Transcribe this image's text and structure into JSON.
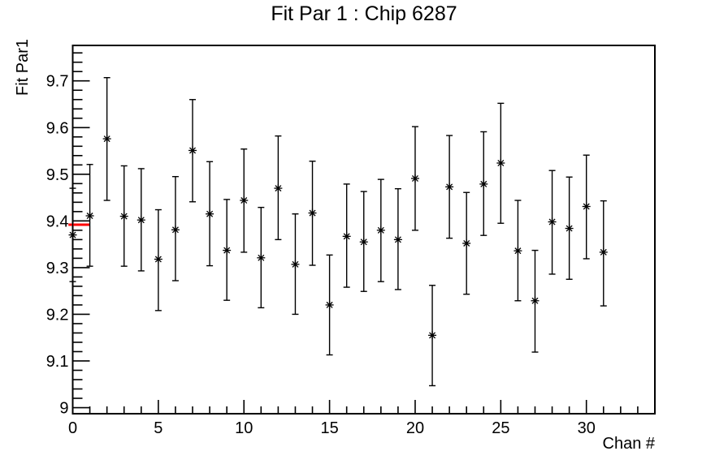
{
  "window": {
    "background": "#ffffff",
    "foreground": "#000000"
  },
  "chart_data": {
    "type": "scatter",
    "title": "Fit Par 1 : Chip 6287",
    "xlabel": "Chan #",
    "ylabel": "Fit Par1",
    "xlim": [
      0,
      34
    ],
    "ylim": [
      8.987,
      9.776
    ],
    "grid": false,
    "legend": false,
    "marker": "asterisk",
    "colors": {
      "data": "#000000",
      "frame": "#000000",
      "reference_line": "#ff0000"
    },
    "x_ticks": {
      "major": [
        0,
        5,
        10,
        15,
        20,
        25,
        30
      ],
      "labels": [
        "0",
        "5",
        "10",
        "15",
        "20",
        "25",
        "30"
      ],
      "minor_step": 1
    },
    "y_ticks": {
      "major": [
        9.0,
        9.1,
        9.2,
        9.3,
        9.4,
        9.5,
        9.6,
        9.7
      ],
      "labels": [
        "9",
        "9.1",
        "9.2",
        "9.3",
        "9.4",
        "9.5",
        "9.6",
        "9.7"
      ],
      "minor_step": 0.02
    },
    "reference_line": {
      "y": 9.392,
      "x1": -0.25,
      "x2": 1.0
    },
    "points": [
      {
        "chan": 0,
        "y": 9.37,
        "lo": 9.27,
        "hi": 9.47
      },
      {
        "chan": 1,
        "y": 9.411,
        "lo": 9.303,
        "hi": 9.521
      },
      {
        "chan": 2,
        "y": 9.576,
        "lo": 9.444,
        "hi": 9.707
      },
      {
        "chan": 3,
        "y": 9.41,
        "lo": 9.303,
        "hi": 9.518
      },
      {
        "chan": 4,
        "y": 9.402,
        "lo": 9.293,
        "hi": 9.512
      },
      {
        "chan": 5,
        "y": 9.318,
        "lo": 9.208,
        "hi": 9.424
      },
      {
        "chan": 6,
        "y": 9.381,
        "lo": 9.272,
        "hi": 9.495
      },
      {
        "chan": 7,
        "y": 9.551,
        "lo": 9.441,
        "hi": 9.66
      },
      {
        "chan": 8,
        "y": 9.415,
        "lo": 9.304,
        "hi": 9.527
      },
      {
        "chan": 9,
        "y": 9.337,
        "lo": 9.23,
        "hi": 9.446
      },
      {
        "chan": 10,
        "y": 9.444,
        "lo": 9.333,
        "hi": 9.554
      },
      {
        "chan": 11,
        "y": 9.321,
        "lo": 9.214,
        "hi": 9.429
      },
      {
        "chan": 12,
        "y": 9.47,
        "lo": 9.36,
        "hi": 9.582
      },
      {
        "chan": 13,
        "y": 9.307,
        "lo": 9.2,
        "hi": 9.415
      },
      {
        "chan": 14,
        "y": 9.417,
        "lo": 9.305,
        "hi": 9.528
      },
      {
        "chan": 15,
        "y": 9.22,
        "lo": 9.113,
        "hi": 9.327
      },
      {
        "chan": 16,
        "y": 9.367,
        "lo": 9.258,
        "hi": 9.479
      },
      {
        "chan": 17,
        "y": 9.355,
        "lo": 9.249,
        "hi": 9.463
      },
      {
        "chan": 18,
        "y": 9.38,
        "lo": 9.27,
        "hi": 9.489
      },
      {
        "chan": 19,
        "y": 9.36,
        "lo": 9.253,
        "hi": 9.469
      },
      {
        "chan": 20,
        "y": 9.491,
        "lo": 9.38,
        "hi": 9.602
      },
      {
        "chan": 21,
        "y": 9.155,
        "lo": 9.047,
        "hi": 9.262
      },
      {
        "chan": 22,
        "y": 9.473,
        "lo": 9.363,
        "hi": 9.583
      },
      {
        "chan": 23,
        "y": 9.352,
        "lo": 9.243,
        "hi": 9.461
      },
      {
        "chan": 24,
        "y": 9.479,
        "lo": 9.369,
        "hi": 9.591
      },
      {
        "chan": 25,
        "y": 9.524,
        "lo": 9.395,
        "hi": 9.652
      },
      {
        "chan": 26,
        "y": 9.336,
        "lo": 9.229,
        "hi": 9.444
      },
      {
        "chan": 27,
        "y": 9.229,
        "lo": 9.119,
        "hi": 9.337
      },
      {
        "chan": 28,
        "y": 9.398,
        "lo": 9.286,
        "hi": 9.508
      },
      {
        "chan": 29,
        "y": 9.384,
        "lo": 9.275,
        "hi": 9.494
      },
      {
        "chan": 30,
        "y": 9.431,
        "lo": 9.319,
        "hi": 9.541
      },
      {
        "chan": 31,
        "y": 9.333,
        "lo": 9.218,
        "hi": 9.443
      }
    ]
  }
}
